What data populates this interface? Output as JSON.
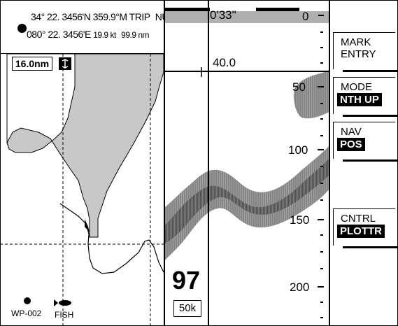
{
  "nav_info": {
    "lat": "34° 22. 3456'N",
    "heading": "359.9°M",
    "trip_label": "TRIP",
    "nu_label": "NU",
    "lon": "080° 22. 3456'E",
    "speed": "19.9 kt",
    "distance": "99.9 nm"
  },
  "plotter": {
    "range": "16.0nm",
    "waypoint_label": "WP-002",
    "fish_label": "FISH"
  },
  "sounder": {
    "timer": "0'33\"",
    "cursor_depth": "40.0",
    "depth_ticks": [
      "0",
      "50",
      "100",
      "150",
      "200"
    ],
    "current_depth": "97",
    "frequency": "50k"
  },
  "softkeys": [
    {
      "line1": "MARK",
      "line2": "ENTRY"
    },
    {
      "line1": "MODE",
      "value": "NTH UP"
    },
    {
      "line1": "NAV",
      "value": "POS"
    },
    {
      "line1": "CNTRL",
      "value": "PLOTTR"
    }
  ],
  "colors": {
    "land": "#c8c8c8",
    "echo_dark": "#6a6a6a",
    "echo_light": "#a0a0a0",
    "bar": "#b0b0b0"
  }
}
